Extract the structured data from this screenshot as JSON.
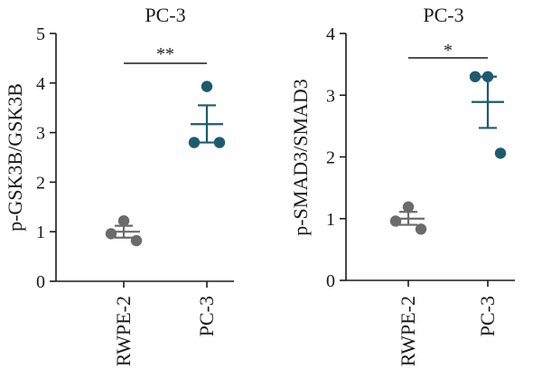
{
  "colors": {
    "control": "#6b6b6b",
    "treated": "#1e5a6e",
    "axis": "#1a1a1a"
  },
  "chart_data": [
    {
      "type": "scatter",
      "title": "PC-3",
      "ylabel": "p-GSK3B/GSK3B",
      "xlabel": "",
      "categories": [
        "RWPE-2",
        "PC-3"
      ],
      "ylim": [
        0,
        5
      ],
      "yticks": [
        "0",
        "1",
        "2",
        "3",
        "4",
        "5"
      ],
      "grid": false,
      "series": [
        {
          "category": "RWPE-2",
          "color": "#6b6b6b",
          "points": [
            1.22,
            0.96,
            0.82
          ],
          "mean": 1.0,
          "sem": [
            0.88,
            1.12
          ]
        },
        {
          "category": "PC-3",
          "color": "#1e5a6e",
          "points": [
            3.93,
            2.8,
            2.8
          ],
          "mean": 3.17,
          "sem": [
            2.8,
            3.55
          ]
        }
      ],
      "significance": {
        "label": "**",
        "between": [
          "RWPE-2",
          "PC-3"
        ]
      }
    },
    {
      "type": "scatter",
      "title": "PC-3",
      "ylabel": "p-SMAD3/SMAD3",
      "xlabel": "",
      "categories": [
        "RWPE-2",
        "PC-3"
      ],
      "ylim": [
        0,
        4
      ],
      "yticks": [
        "0",
        "1",
        "2",
        "3",
        "4"
      ],
      "grid": false,
      "series": [
        {
          "category": "RWPE-2",
          "color": "#6b6b6b",
          "points": [
            1.19,
            0.96,
            0.83
          ],
          "mean": 1.0,
          "sem": [
            0.9,
            1.11
          ]
        },
        {
          "category": "PC-3",
          "color": "#1e5a6e",
          "points": [
            3.3,
            3.3,
            2.06
          ],
          "mean": 2.89,
          "sem": [
            2.47,
            3.3
          ]
        }
      ],
      "significance": {
        "label": "*",
        "between": [
          "RWPE-2",
          "PC-3"
        ]
      }
    }
  ]
}
